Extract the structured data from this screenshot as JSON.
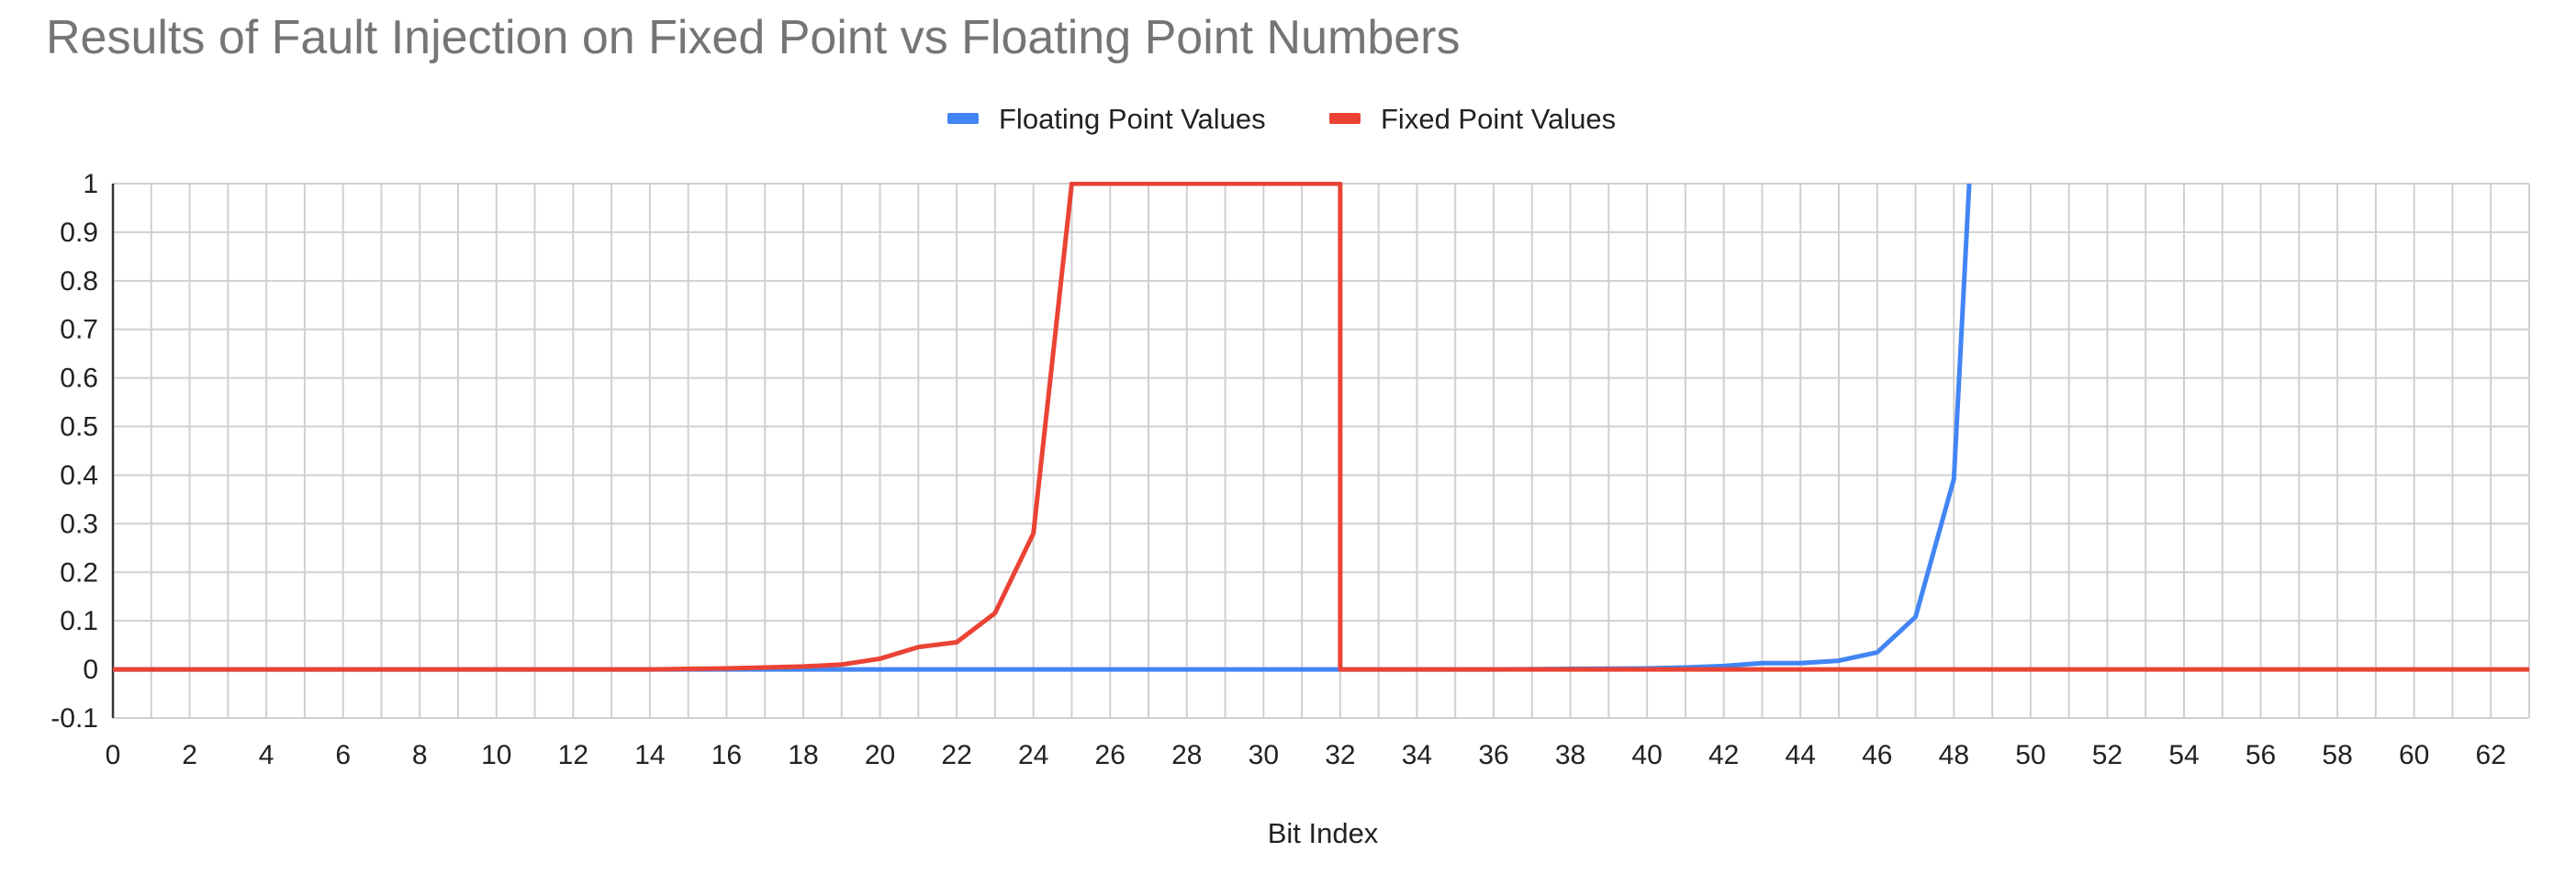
{
  "chart_data": {
    "type": "line",
    "title": "Results of Fault Injection on Fixed Point vs Floating Point Numbers",
    "xlabel": "Bit Index",
    "ylabel": "",
    "xlim": [
      0,
      63
    ],
    "ylim": [
      -0.1,
      1
    ],
    "x_ticks": [
      "0",
      "2",
      "4",
      "6",
      "8",
      "10",
      "12",
      "14",
      "16",
      "18",
      "20",
      "22",
      "24",
      "26",
      "28",
      "30",
      "32",
      "34",
      "36",
      "38",
      "40",
      "42",
      "44",
      "46",
      "48",
      "50",
      "52",
      "54",
      "56",
      "58",
      "60",
      "62"
    ],
    "y_ticks": [
      "1",
      "0.9",
      "0.8",
      "0.7",
      "0.6",
      "0.5",
      "0.4",
      "0.3",
      "0.2",
      "0.1",
      "0",
      "-0.1"
    ],
    "grid": true,
    "legend_position": "top-center",
    "series": [
      {
        "name": "Floating Point Values",
        "color": "#4285f4",
        "x": [
          0,
          4,
          8,
          12,
          16,
          20,
          24,
          28,
          32,
          36,
          38,
          40,
          41,
          42,
          43,
          44,
          45,
          46,
          47,
          48,
          48.4
        ],
        "y": [
          0,
          0,
          0,
          0,
          0,
          0,
          0,
          0,
          0,
          0,
          0.001,
          0.002,
          0.004,
          0.007,
          0.013,
          0.013,
          0.018,
          0.035,
          0.108,
          0.392,
          1.0
        ]
      },
      {
        "name": "Fixed Point Values",
        "color": "#ea4335",
        "x": [
          0,
          4,
          8,
          12,
          14,
          15,
          16,
          17,
          18,
          19,
          20,
          21,
          22,
          23,
          24,
          25,
          32,
          32,
          36,
          40,
          44,
          48,
          52,
          56,
          60,
          63
        ],
        "y": [
          0,
          0,
          0,
          0,
          0,
          0.001,
          0.002,
          0.004,
          0.006,
          0.01,
          0.022,
          0.046,
          0.056,
          0.116,
          0.28,
          1.0,
          1.0,
          0,
          0,
          0,
          0,
          0,
          0,
          0,
          0,
          0
        ]
      }
    ]
  }
}
